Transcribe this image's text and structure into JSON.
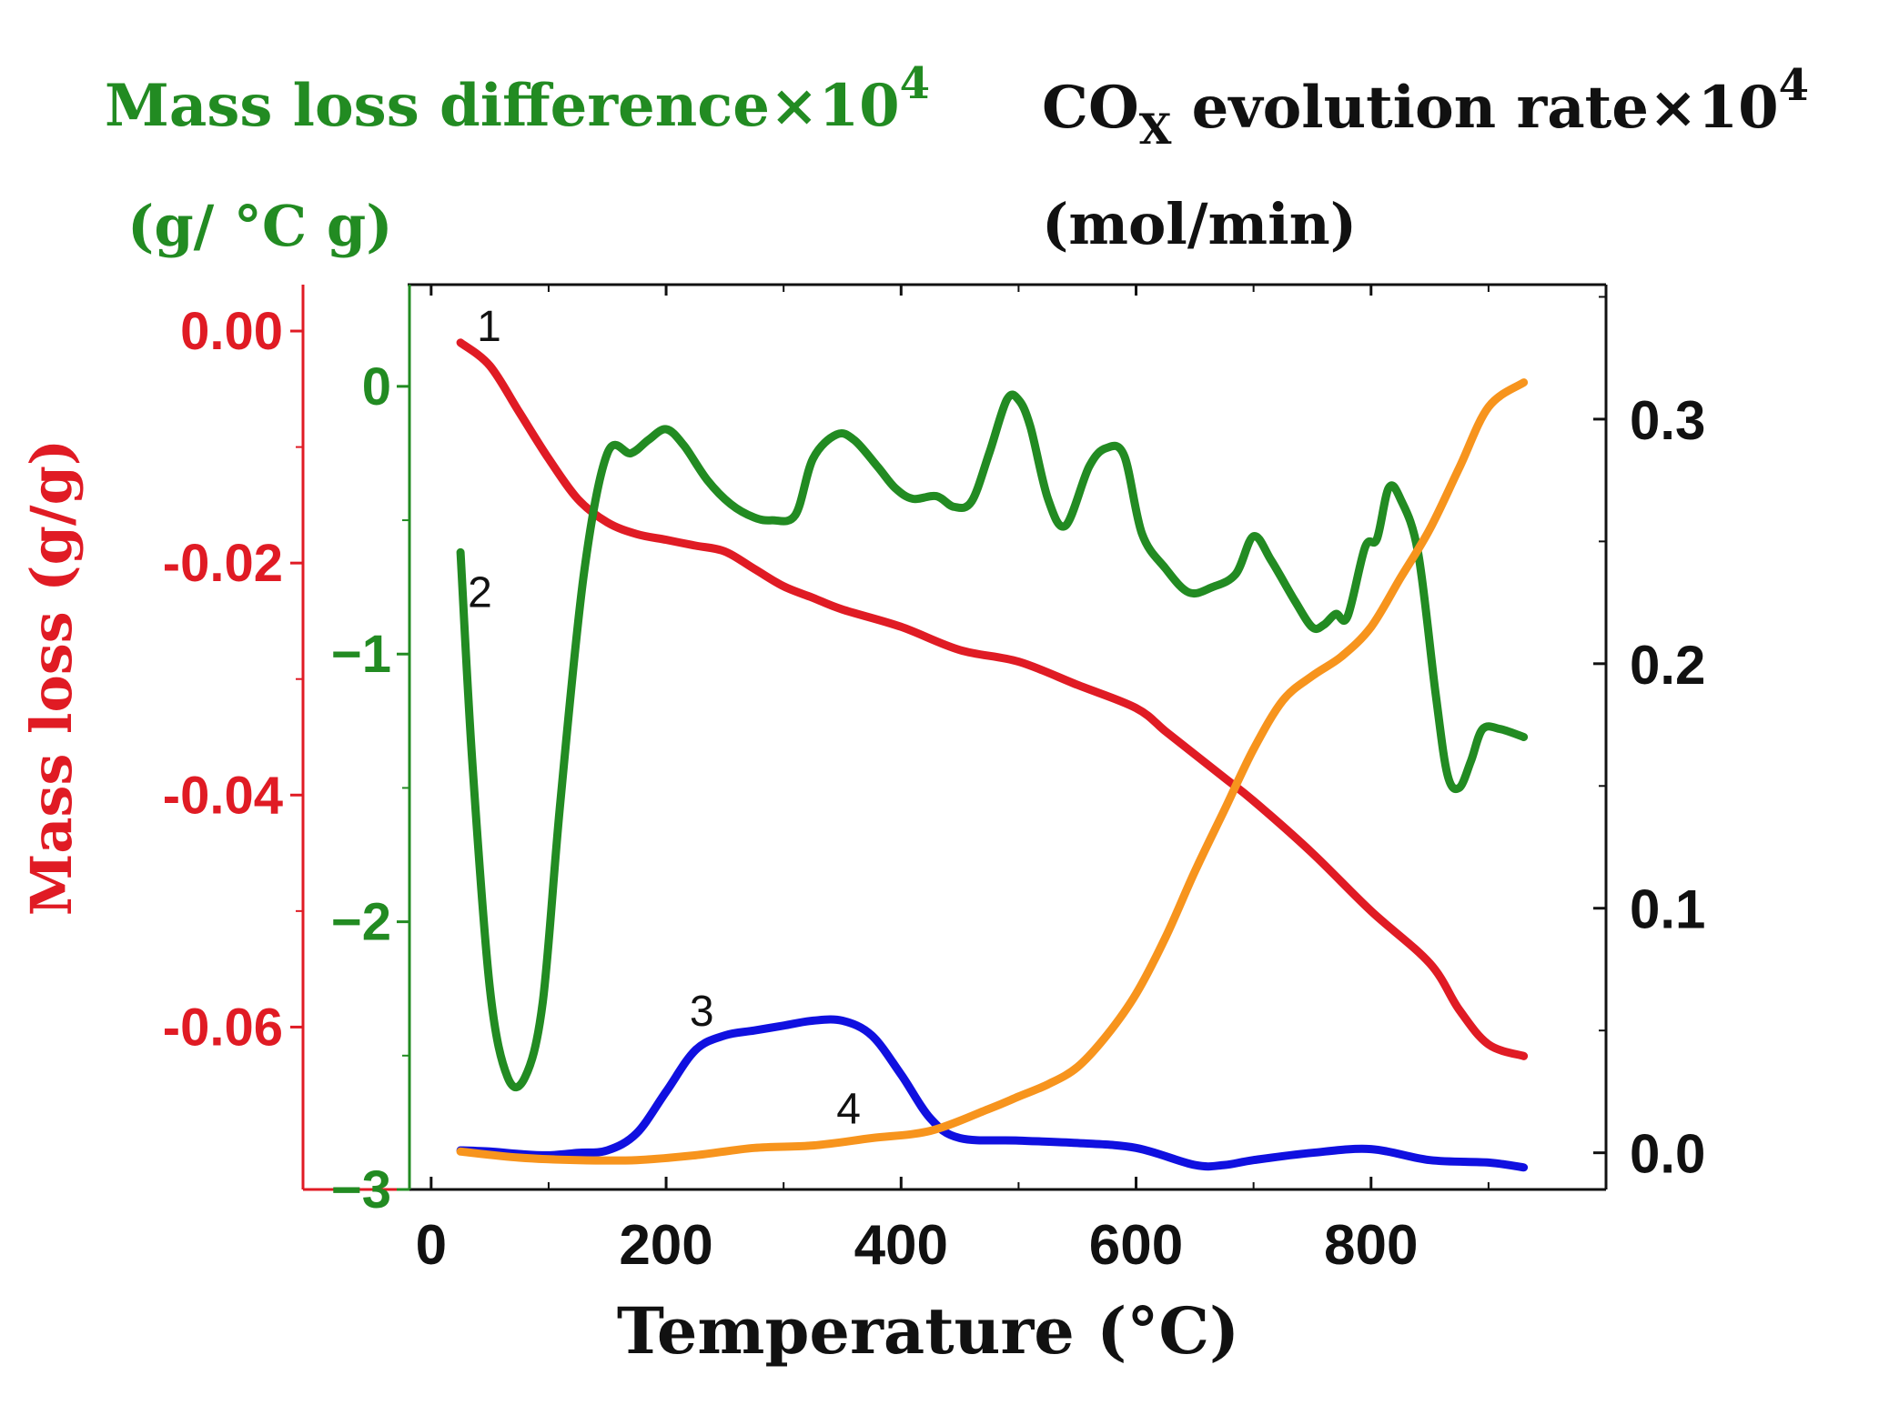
{
  "chart_data": {
    "type": "line",
    "xlabel": "Temperature (°C)",
    "xlim": [
      -20,
      1000
    ],
    "xticks": [
      0,
      200,
      400,
      600,
      800
    ],
    "axes": {
      "mass_loss": {
        "label": "Mass loss  (g/g)",
        "color": "#e01b24",
        "range": [
          -0.074,
          0.004
        ],
        "ticks": [
          "0.00",
          "-0.02",
          "-0.04",
          "-0.06"
        ],
        "tick_values": [
          0.0,
          -0.02,
          -0.04,
          -0.06
        ]
      },
      "mass_loss_difference": {
        "title_main": "Mass loss difference",
        "title_mult": "×10",
        "title_exp": "4",
        "title_unit": "(g/ °C g)",
        "color": "#228b22",
        "range": [
          -3.0,
          0.38
        ],
        "ticks": [
          "0",
          "−1",
          "−2",
          "−3"
        ],
        "tick_values": [
          0,
          -1,
          -2,
          -3
        ]
      },
      "cox_rate": {
        "title_main": "CO",
        "title_sub": "X",
        "title_rest": " evolution rate",
        "title_mult": "×10",
        "title_exp": "4",
        "title_unit": "(mol/min)",
        "color": "#111111",
        "range": [
          -0.015,
          0.355
        ],
        "ticks": [
          "0.3",
          "0.2",
          "0.1",
          "0.0"
        ],
        "tick_values": [
          0.3,
          0.2,
          0.1,
          0.0
        ]
      }
    },
    "series": [
      {
        "name": "1",
        "label": "1",
        "axis": "mass_loss",
        "color": "#e01b24",
        "x": [
          25,
          50,
          75,
          100,
          125,
          150,
          175,
          200,
          225,
          250,
          275,
          300,
          325,
          350,
          400,
          450,
          500,
          550,
          600,
          625,
          650,
          675,
          700,
          750,
          800,
          850,
          875,
          900,
          930
        ],
        "y": [
          -0.001,
          -0.003,
          -0.007,
          -0.011,
          -0.0145,
          -0.0165,
          -0.0175,
          -0.018,
          -0.0185,
          -0.019,
          -0.0205,
          -0.022,
          -0.023,
          -0.024,
          -0.0255,
          -0.0275,
          -0.0285,
          -0.0305,
          -0.0325,
          -0.0345,
          -0.0365,
          -0.0385,
          -0.0405,
          -0.045,
          -0.05,
          -0.0545,
          -0.0585,
          -0.0615,
          -0.0625
        ]
      },
      {
        "name": "2",
        "label": "2",
        "axis": "mass_loss_difference",
        "color": "#228b22",
        "x": [
          25,
          35,
          50,
          65,
          80,
          95,
          110,
          130,
          150,
          170,
          185,
          200,
          215,
          235,
          255,
          275,
          290,
          310,
          325,
          345,
          360,
          380,
          395,
          410,
          430,
          445,
          460,
          475,
          490,
          500,
          510,
          525,
          540,
          560,
          575,
          590,
          605,
          625,
          645,
          665,
          685,
          700,
          715,
          735,
          750,
          760,
          770,
          780,
          795,
          805,
          815,
          825,
          840,
          855,
          865,
          875,
          885,
          895,
          910,
          930
        ],
        "y": [
          -0.62,
          -1.4,
          -2.25,
          -2.58,
          -2.58,
          -2.3,
          -1.55,
          -0.7,
          -0.25,
          -0.25,
          -0.2,
          -0.16,
          -0.22,
          -0.35,
          -0.44,
          -0.49,
          -0.5,
          -0.48,
          -0.27,
          -0.18,
          -0.2,
          -0.3,
          -0.38,
          -0.42,
          -0.41,
          -0.45,
          -0.43,
          -0.25,
          -0.05,
          -0.05,
          -0.15,
          -0.42,
          -0.52,
          -0.3,
          -0.23,
          -0.26,
          -0.55,
          -0.68,
          -0.77,
          -0.75,
          -0.7,
          -0.56,
          -0.65,
          -0.8,
          -0.9,
          -0.89,
          -0.85,
          -0.86,
          -0.6,
          -0.57,
          -0.38,
          -0.42,
          -0.62,
          -1.15,
          -1.45,
          -1.5,
          -1.4,
          -1.28,
          -1.28,
          -1.31
        ]
      },
      {
        "name": "3",
        "label": "3",
        "axis": "cox_rate",
        "color": "#1010e0",
        "x": [
          25,
          50,
          75,
          100,
          125,
          150,
          175,
          200,
          225,
          250,
          275,
          300,
          325,
          350,
          375,
          400,
          425,
          450,
          500,
          550,
          600,
          650,
          675,
          700,
          750,
          800,
          850,
          900,
          930
        ],
        "y": [
          0.001,
          0.0005,
          -0.0005,
          -0.001,
          0.0,
          0.001,
          0.008,
          0.025,
          0.042,
          0.048,
          0.05,
          0.052,
          0.054,
          0.054,
          0.048,
          0.032,
          0.014,
          0.006,
          0.005,
          0.004,
          0.002,
          -0.005,
          -0.005,
          -0.003,
          0.0,
          0.0015,
          -0.003,
          -0.004,
          -0.006
        ]
      },
      {
        "name": "4",
        "label": "4",
        "axis": "cox_rate",
        "color": "#f7941d",
        "x": [
          25,
          75,
          125,
          175,
          225,
          275,
          325,
          375,
          425,
          475,
          500,
          525,
          550,
          575,
          600,
          625,
          650,
          675,
          700,
          725,
          750,
          775,
          800,
          825,
          850,
          875,
          900,
          930
        ],
        "y": [
          0.0005,
          -0.002,
          -0.003,
          -0.003,
          -0.001,
          0.002,
          0.003,
          0.006,
          0.009,
          0.018,
          0.023,
          0.028,
          0.035,
          0.048,
          0.065,
          0.088,
          0.115,
          0.14,
          0.165,
          0.185,
          0.195,
          0.203,
          0.215,
          0.235,
          0.255,
          0.28,
          0.305,
          0.315
        ]
      }
    ]
  }
}
